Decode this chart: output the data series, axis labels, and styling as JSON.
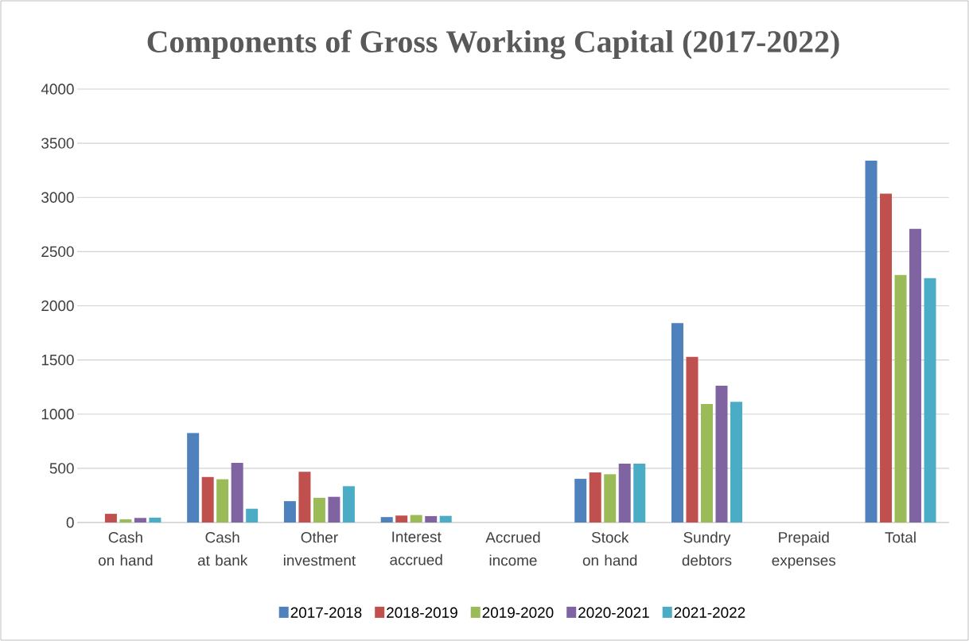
{
  "chart_data": {
    "type": "bar",
    "title": "Components of Gross Working Capital (2017-2022)",
    "categories": [
      "Cash on hand",
      "Cash at bank",
      "Other investment",
      "Interest accrued",
      "Accrued income",
      "Stock on hand",
      "Sundry debtors",
      "Prepaid expenses",
      "Total"
    ],
    "series": [
      {
        "name": "2017-2018",
        "color": "#4f81bd",
        "values": [
          0,
          825,
          197,
          50,
          0,
          403,
          1840,
          0,
          3340
        ]
      },
      {
        "name": "2018-2019",
        "color": "#c0504d",
        "values": [
          80,
          420,
          468,
          64,
          0,
          462,
          1529,
          0,
          3035
        ]
      },
      {
        "name": "2019-2020",
        "color": "#9bbb59",
        "values": [
          29,
          399,
          228,
          69,
          0,
          445,
          1094,
          0,
          2285
        ]
      },
      {
        "name": "2020-2021",
        "color": "#8064a2",
        "values": [
          42,
          550,
          237,
          59,
          0,
          543,
          1262,
          0,
          2710
        ]
      },
      {
        "name": "2021-2022",
        "color": "#4bacc6",
        "values": [
          45,
          127,
          335,
          61,
          0,
          543,
          1114,
          0,
          2255
        ]
      }
    ],
    "ylim": [
      0,
      4000
    ],
    "yticks": [
      0,
      500,
      1000,
      1500,
      2000,
      2500,
      3000,
      3500,
      4000
    ],
    "grid": "y",
    "legend": "bottom"
  }
}
